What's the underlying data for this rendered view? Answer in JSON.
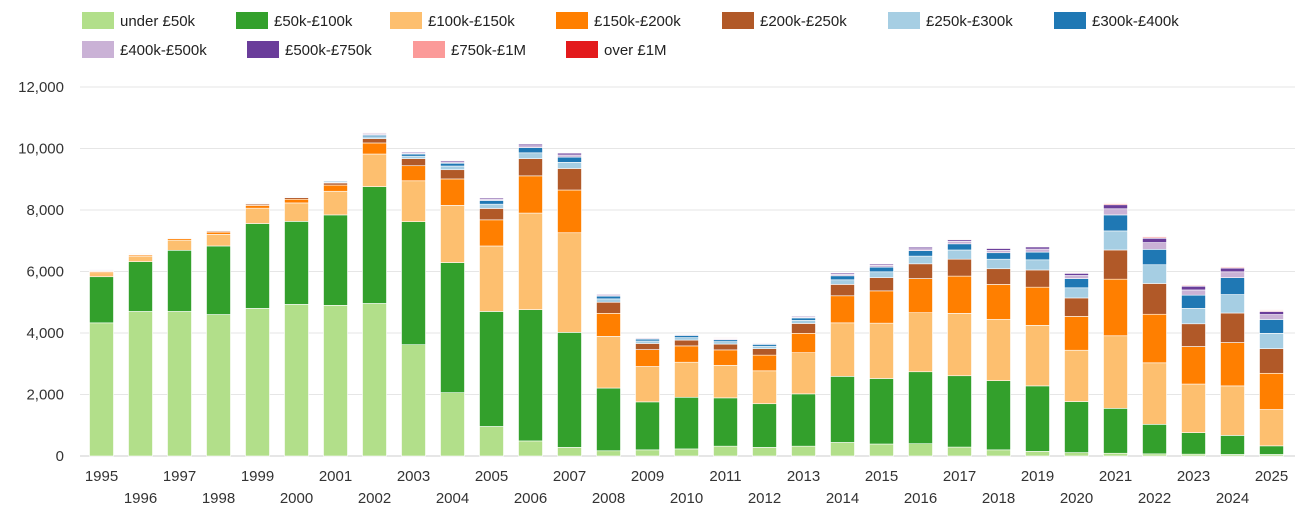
{
  "chart_data": {
    "type": "bar",
    "stacked": true,
    "title": "",
    "xlabel": "",
    "ylabel": "",
    "ylim": [
      0,
      12000
    ],
    "yticks": [
      0,
      2000,
      4000,
      6000,
      8000,
      10000,
      12000
    ],
    "ytick_labels": [
      "0",
      "2,000",
      "4,000",
      "6,000",
      "8,000",
      "10,000",
      "12,000"
    ],
    "grid": true,
    "legend_position": "top",
    "categories": [
      "1995",
      "1996",
      "1997",
      "1998",
      "1999",
      "2000",
      "2001",
      "2002",
      "2003",
      "2004",
      "2005",
      "2006",
      "2007",
      "2008",
      "2009",
      "2010",
      "2011",
      "2012",
      "2013",
      "2014",
      "2015",
      "2016",
      "2017",
      "2018",
      "2019",
      "2020",
      "2021",
      "2022",
      "2023",
      "2024",
      "2025"
    ],
    "series": [
      {
        "name": "under £50k",
        "color": "#b2df8a",
        "values": [
          4330,
          4700,
          4700,
          4600,
          4800,
          4930,
          4900,
          4960,
          3620,
          2060,
          960,
          490,
          280,
          170,
          200,
          230,
          320,
          280,
          320,
          440,
          390,
          400,
          290,
          200,
          150,
          110,
          90,
          70,
          60,
          50,
          50
        ]
      },
      {
        "name": "£50k-£100k",
        "color": "#33a02c",
        "values": [
          1500,
          1620,
          1990,
          2230,
          2760,
          2700,
          2940,
          3800,
          4000,
          4230,
          3740,
          4270,
          3740,
          2040,
          1560,
          1680,
          1570,
          1420,
          1700,
          2150,
          2130,
          2340,
          2320,
          2250,
          2130,
          1660,
          1460,
          960,
          700,
          620,
          280
        ]
      },
      {
        "name": "£100k-£150k",
        "color": "#fdbf6f",
        "values": [
          130,
          180,
          330,
          380,
          500,
          600,
          770,
          1060,
          1330,
          1860,
          2130,
          3140,
          3240,
          1680,
          1150,
          1140,
          1060,
          1070,
          1340,
          1740,
          1800,
          1920,
          2030,
          1990,
          1970,
          1670,
          2360,
          2000,
          1580,
          1610,
          1180
        ]
      },
      {
        "name": "£150k-£200k",
        "color": "#ff7f00",
        "values": [
          40,
          40,
          50,
          70,
          90,
          120,
          200,
          360,
          490,
          860,
          850,
          1210,
          1390,
          750,
          550,
          530,
          500,
          510,
          630,
          880,
          1050,
          1110,
          1210,
          1140,
          1240,
          1100,
          1840,
          1580,
          1220,
          1410,
          1180
        ]
      },
      {
        "name": "£200k-£250k",
        "color": "#b15928",
        "values": [
          20,
          20,
          20,
          30,
          40,
          50,
          70,
          140,
          230,
          300,
          370,
          560,
          700,
          360,
          200,
          190,
          190,
          210,
          320,
          370,
          430,
          480,
          550,
          510,
          560,
          600,
          950,
          1000,
          740,
          960,
          800
        ]
      },
      {
        "name": "£250k-£300k",
        "color": "#a6cee3",
        "values": [
          10,
          10,
          10,
          10,
          20,
          20,
          30,
          60,
          80,
          120,
          140,
          190,
          200,
          110,
          80,
          80,
          80,
          80,
          100,
          150,
          190,
          250,
          300,
          310,
          330,
          330,
          620,
          610,
          500,
          600,
          500
        ]
      },
      {
        "name": "£300k-£400k",
        "color": "#1f78b4",
        "values": [
          10,
          10,
          10,
          10,
          20,
          20,
          30,
          50,
          70,
          90,
          120,
          170,
          170,
          90,
          60,
          70,
          60,
          60,
          80,
          130,
          150,
          180,
          200,
          210,
          250,
          300,
          520,
          500,
          430,
          550,
          450
        ]
      },
      {
        "name": "£400k-£500k",
        "color": "#cab2d6",
        "values": [
          5,
          5,
          5,
          5,
          10,
          10,
          10,
          30,
          30,
          40,
          40,
          60,
          70,
          40,
          30,
          30,
          30,
          30,
          30,
          50,
          60,
          60,
          80,
          80,
          100,
          100,
          200,
          220,
          170,
          190,
          160
        ]
      },
      {
        "name": "£500k-£750k",
        "color": "#6a3d9a",
        "values": [
          5,
          5,
          5,
          5,
          10,
          10,
          10,
          30,
          30,
          40,
          40,
          50,
          60,
          30,
          20,
          20,
          20,
          20,
          30,
          40,
          40,
          50,
          50,
          60,
          70,
          70,
          130,
          140,
          120,
          120,
          100
        ]
      },
      {
        "name": "£750k-£1M",
        "color": "#fb9a99",
        "values": [
          0,
          0,
          0,
          0,
          5,
          5,
          5,
          10,
          10,
          10,
          10,
          10,
          10,
          5,
          5,
          5,
          5,
          5,
          5,
          10,
          10,
          10,
          10,
          10,
          20,
          20,
          40,
          40,
          30,
          30,
          30
        ]
      },
      {
        "name": "over £1M",
        "color": "#e31a1c",
        "values": [
          0,
          0,
          0,
          0,
          0,
          0,
          0,
          5,
          5,
          5,
          5,
          5,
          5,
          5,
          5,
          5,
          5,
          5,
          5,
          5,
          5,
          5,
          5,
          5,
          10,
          10,
          20,
          20,
          20,
          20,
          20
        ]
      }
    ]
  }
}
